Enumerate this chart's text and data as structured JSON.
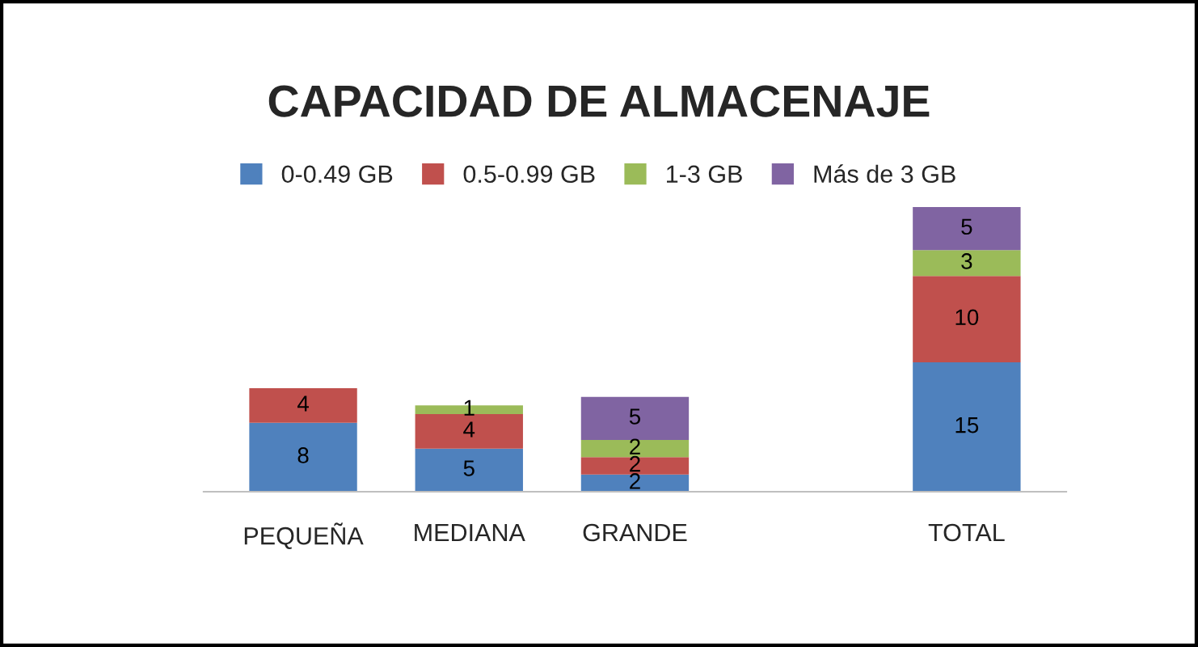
{
  "chart_data": {
    "type": "bar",
    "title": "CAPACIDAD DE ALMACENAJE",
    "categories": [
      "PEQUEÑA",
      "MEDIANA",
      "GRANDE",
      null,
      "TOTAL"
    ],
    "series": [
      {
        "name": "0-0.49 GB",
        "color": "#4f81bd",
        "values": [
          8,
          5,
          2,
          null,
          15
        ]
      },
      {
        "name": "0.5-0.99 GB",
        "color": "#c0504d",
        "values": [
          4,
          4,
          2,
          null,
          10
        ]
      },
      {
        "name": "1-3 GB",
        "color": "#9bbb59",
        "values": [
          null,
          1,
          2,
          null,
          3
        ]
      },
      {
        "name": "Más de 3 GB",
        "color": "#8064a2",
        "values": [
          null,
          null,
          5,
          null,
          5
        ]
      }
    ],
    "stacked": true,
    "data_labels": true,
    "legend": "top",
    "tick_labels": "x",
    "grid": false
  }
}
